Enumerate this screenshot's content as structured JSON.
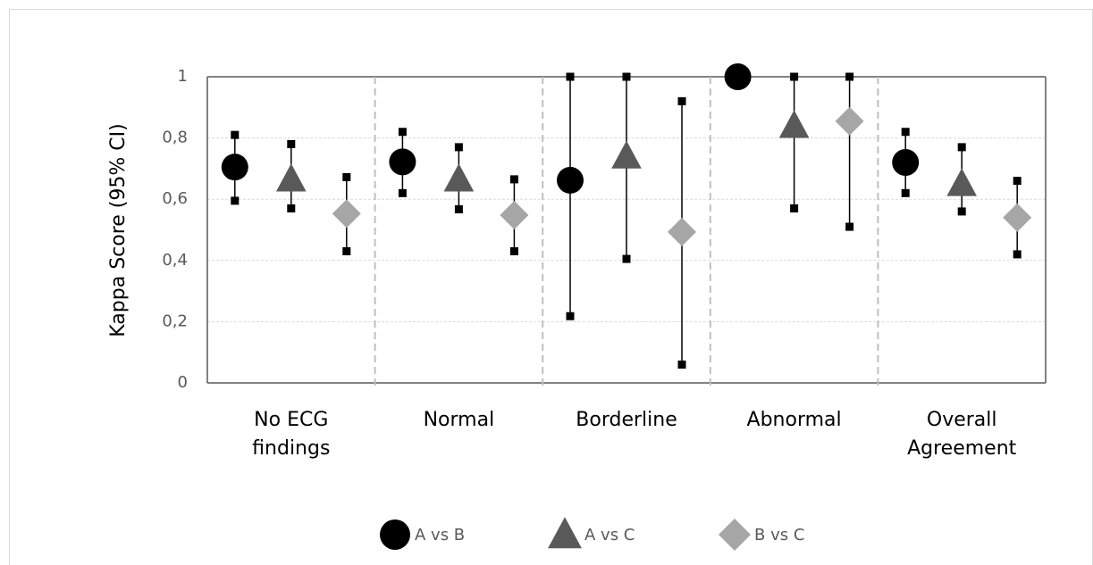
{
  "chart_data": {
    "type": "errorbar",
    "y_label": "Kappa Score (95% CI)",
    "categories": [
      "No ECG findings",
      "Normal",
      "Borderline",
      "Abnormal",
      "Overall Agreement"
    ],
    "ylim": [
      0,
      1
    ],
    "yticks": [
      0,
      {
        "value": 0.2,
        "label": "0,2"
      },
      {
        "value": 0.4,
        "label": "0,4"
      },
      {
        "value": 0.6,
        "label": "0,6"
      },
      {
        "value": 0.8,
        "label": "0,8"
      },
      1
    ],
    "grid": true,
    "legend": "bottom",
    "series": [
      {
        "name": "A vs B",
        "color": "#000000",
        "marker": "circle",
        "values": [
          0.705,
          0.722,
          0.662,
          1,
          0.72
        ],
        "lower": [
          0.595,
          0.62,
          0.218,
          null,
          0.62
        ],
        "upper": [
          0.81,
          0.82,
          1,
          null,
          0.82
        ]
      },
      {
        "name": "A vs C",
        "color": "#595959",
        "marker": "triangle",
        "values": [
          0.665,
          0.665,
          0.74,
          0.84,
          0.65
        ],
        "lower": [
          0.57,
          0.567,
          0.405,
          0.57,
          0.56
        ],
        "upper": [
          0.78,
          0.77,
          1,
          1,
          0.77
        ]
      },
      {
        "name": "B vs C",
        "color": "#a6a6a6",
        "marker": "diamond",
        "values": [
          0.553,
          0.548,
          0.493,
          0.855,
          0.54
        ],
        "lower": [
          0.43,
          0.43,
          0.06,
          0.51,
          0.42
        ],
        "upper": [
          0.672,
          0.665,
          0.92,
          1,
          0.66
        ]
      }
    ]
  }
}
